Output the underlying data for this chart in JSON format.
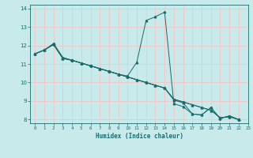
{
  "xlabel": "Humidex (Indice chaleur)",
  "ylabel": "",
  "bg_color": "#c8eaea",
  "grid_color": "#f0c8c8",
  "line_color": "#1a6b6b",
  "xlim": [
    -0.5,
    23
  ],
  "ylim": [
    7.8,
    14.2
  ],
  "yticks": [
    8,
    9,
    10,
    11,
    12,
    13,
    14
  ],
  "xticks": [
    0,
    1,
    2,
    3,
    4,
    5,
    6,
    7,
    8,
    9,
    10,
    11,
    12,
    13,
    14,
    15,
    16,
    17,
    18,
    19,
    20,
    21,
    22,
    23
  ],
  "series": [
    {
      "x": [
        0,
        1,
        2,
        3,
        4,
        5,
        6,
        7,
        8,
        9,
        10,
        11,
        12,
        13,
        14,
        15,
        16,
        17,
        18,
        19,
        20,
        21,
        22
      ],
      "y": [
        11.55,
        11.75,
        12.05,
        11.3,
        11.2,
        11.05,
        10.9,
        10.75,
        10.6,
        10.45,
        10.3,
        10.15,
        10.0,
        9.85,
        9.7,
        9.1,
        8.95,
        8.8,
        8.65,
        8.5,
        8.1,
        8.15,
        8.0
      ]
    },
    {
      "x": [
        0,
        1,
        2,
        3,
        4,
        5,
        6,
        7,
        8,
        9,
        10,
        11,
        12,
        13,
        14,
        15,
        16,
        17,
        18,
        19,
        20,
        21,
        22
      ],
      "y": [
        11.55,
        11.75,
        12.05,
        11.3,
        11.2,
        11.05,
        10.9,
        10.75,
        10.6,
        10.45,
        10.3,
        10.15,
        10.0,
        9.85,
        9.7,
        9.1,
        8.95,
        8.8,
        8.65,
        8.5,
        8.1,
        8.15,
        8.0
      ]
    },
    {
      "x": [
        0,
        1,
        2,
        3,
        4,
        5,
        6,
        7,
        8,
        9,
        10,
        11,
        12,
        13,
        14,
        15,
        16,
        17,
        18,
        19,
        20,
        21,
        22
      ],
      "y": [
        11.55,
        11.75,
        12.1,
        11.35,
        11.2,
        11.05,
        10.9,
        10.75,
        10.6,
        10.45,
        10.3,
        10.15,
        10.0,
        9.85,
        9.7,
        9.05,
        8.9,
        8.3,
        8.25,
        8.65,
        8.05,
        8.2,
        8.0
      ]
    },
    {
      "x": [
        0,
        1,
        2,
        3,
        4,
        5,
        6,
        7,
        8,
        9,
        10,
        11,
        12,
        13,
        14,
        15,
        16,
        17,
        18,
        19,
        20,
        21,
        22
      ],
      "y": [
        11.55,
        11.75,
        12.1,
        11.35,
        11.2,
        11.05,
        10.9,
        10.75,
        10.6,
        10.45,
        10.35,
        11.1,
        13.35,
        13.55,
        13.8,
        8.85,
        8.7,
        8.3,
        8.25,
        8.65,
        8.05,
        8.2,
        8.0
      ]
    }
  ]
}
